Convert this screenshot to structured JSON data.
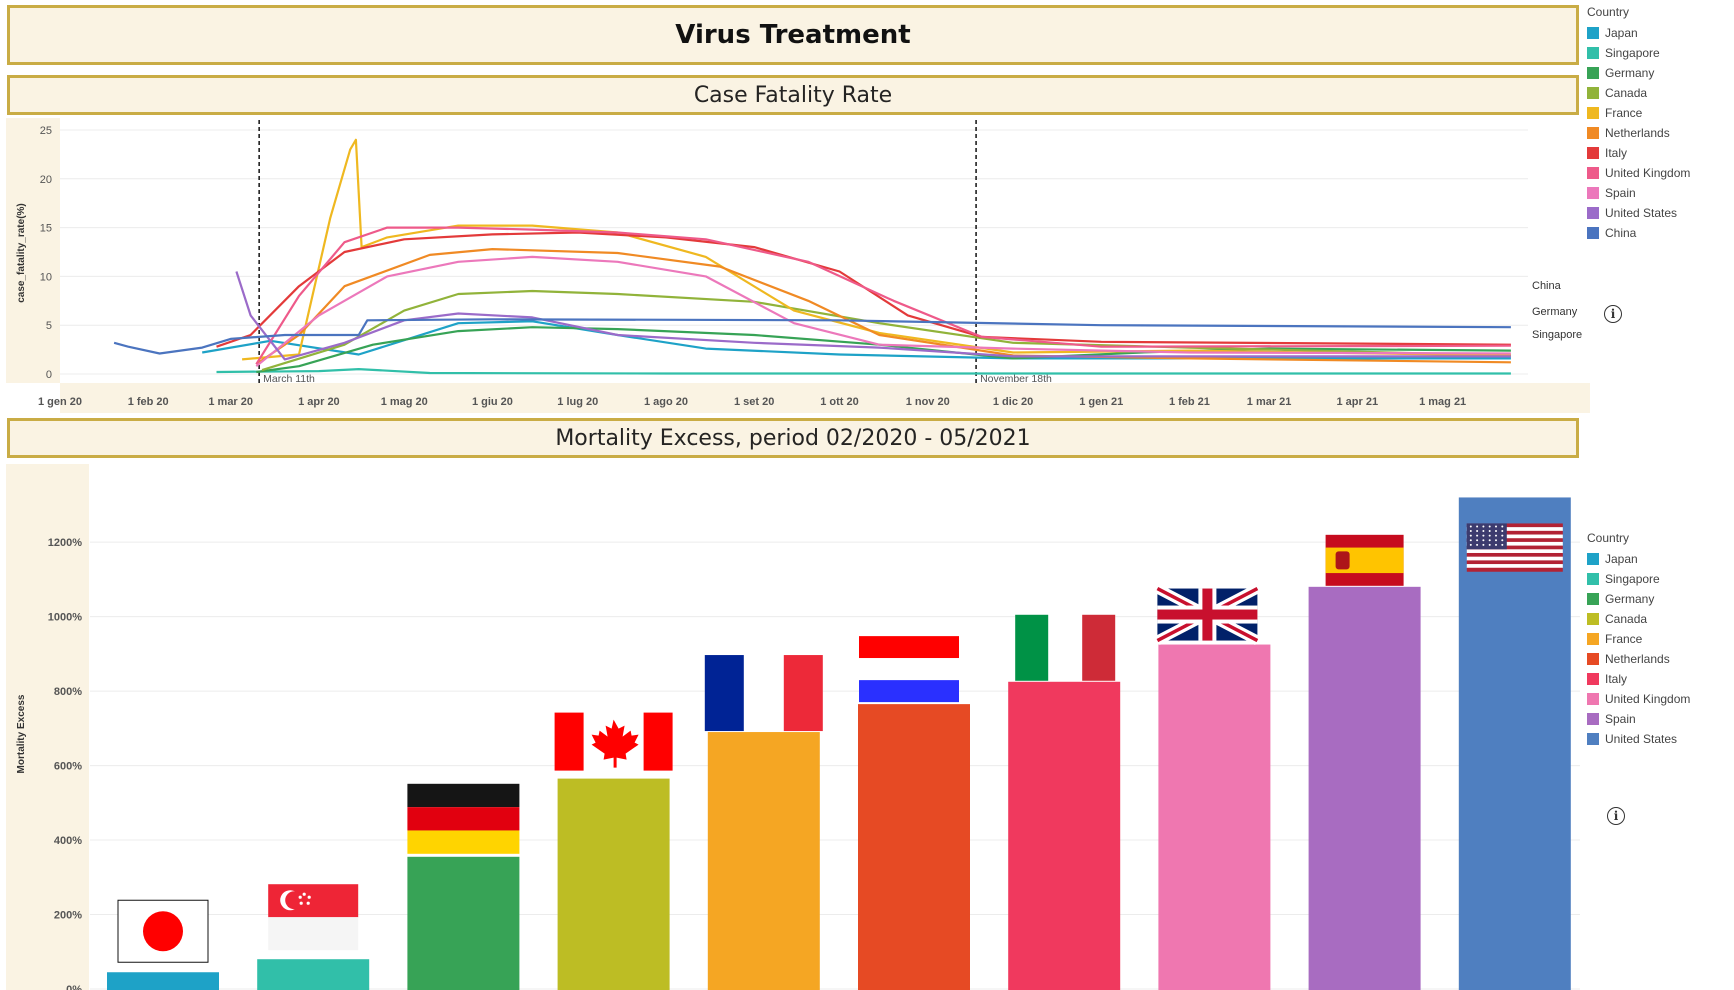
{
  "title": "Virus Treatment",
  "cfr": {
    "subtitle": "Case Fatality Rate",
    "legend_title": "Country"
  },
  "mortality": {
    "subtitle": "Mortality Excess, period 02/2020 - 05/2021",
    "legend_title": "Country"
  },
  "colors": {
    "Japan": "#1ea2c7",
    "Singapore": "#31bfa9",
    "Germany": "#37a356",
    "Canada": "#91b33a",
    "CanadaBar": "#bdbd24",
    "France": "#efb820",
    "FranceBar": "#f5a623",
    "Netherlands": "#f08a24",
    "NetherlandsBar": "#e64a24",
    "Italy": "#e33a3a",
    "ItalyBar": "#f0395e",
    "United Kingdom": "#ee5a8a",
    "United KingdomBar": "#ef77b0",
    "Spain": "#ec78bb",
    "SpainBar": "#a86cc1",
    "United States": "#9b6bc9",
    "United StatesBar": "#4f7fc0",
    "China": "#4b74bf"
  },
  "chart_data": [
    {
      "type": "line",
      "xlabel": "",
      "ylabel": "case_fatality_rate(%)",
      "ylim": [
        0,
        25
      ],
      "yticks": [
        "0",
        "5",
        "10",
        "15",
        "20",
        "25"
      ],
      "xticks": [
        "1 gen 20",
        "1 feb 20",
        "1 mar 20",
        "1 apr 20",
        "1 mag 20",
        "1 giu 20",
        "1 lug 20",
        "1 ago 20",
        "1 set 20",
        "1 ott 20",
        "1 nov 20",
        "1 dic 20",
        "1 gen 21",
        "1 feb 21",
        "1 mar 21",
        "1 apr 21",
        "1 mag 21"
      ],
      "xlim": [
        "2020-01-01",
        "2021-05-31"
      ],
      "grid": true,
      "legend": "right",
      "annotations": [
        {
          "x": "2020-03-11",
          "label": "March 11th"
        },
        {
          "x": "2020-11-18",
          "label": "November 18th"
        }
      ],
      "end_labels": [
        "China",
        "Germany",
        "Singapore"
      ],
      "series": [
        {
          "name": "Japan",
          "points": [
            [
              "2020-02-20",
              2.2
            ],
            [
              "2020-03-15",
              3.4
            ],
            [
              "2020-04-15",
              2.0
            ],
            [
              "2020-05-20",
              5.2
            ],
            [
              "2020-06-15",
              5.4
            ],
            [
              "2020-07-15",
              4.0
            ],
            [
              "2020-08-15",
              2.6
            ],
            [
              "2020-10-01",
              2.0
            ],
            [
              "2020-12-01",
              1.6
            ],
            [
              "2021-02-01",
              1.6
            ],
            [
              "2021-05-25",
              1.6
            ]
          ]
        },
        {
          "name": "Singapore",
          "points": [
            [
              "2020-02-25",
              0.2
            ],
            [
              "2020-04-01",
              0.3
            ],
            [
              "2020-04-15",
              0.5
            ],
            [
              "2020-05-10",
              0.1
            ],
            [
              "2020-08-01",
              0.05
            ],
            [
              "2021-05-25",
              0.05
            ]
          ]
        },
        {
          "name": "Germany",
          "points": [
            [
              "2020-03-10",
              0.2
            ],
            [
              "2020-03-25",
              0.8
            ],
            [
              "2020-04-20",
              3.0
            ],
            [
              "2020-05-20",
              4.4
            ],
            [
              "2020-06-15",
              4.8
            ],
            [
              "2020-07-15",
              4.6
            ],
            [
              "2020-09-01",
              4.0
            ],
            [
              "2020-10-15",
              3.0
            ],
            [
              "2020-12-01",
              1.6
            ],
            [
              "2021-01-15",
              2.2
            ],
            [
              "2021-03-01",
              2.6
            ],
            [
              "2021-05-25",
              2.4
            ]
          ]
        },
        {
          "name": "Canada",
          "points": [
            [
              "2020-03-12",
              0.4
            ],
            [
              "2020-04-10",
              3.0
            ],
            [
              "2020-05-01",
              6.5
            ],
            [
              "2020-05-20",
              8.2
            ],
            [
              "2020-06-15",
              8.5
            ],
            [
              "2020-07-15",
              8.2
            ],
            [
              "2020-09-01",
              7.4
            ],
            [
              "2020-10-15",
              5.2
            ],
            [
              "2020-12-01",
              3.2
            ],
            [
              "2021-02-01",
              2.7
            ],
            [
              "2021-05-25",
              1.9
            ]
          ]
        },
        {
          "name": "France",
          "points": [
            [
              "2020-03-05",
              1.5
            ],
            [
              "2020-03-25",
              2.0
            ],
            [
              "2020-04-05",
              16.0
            ],
            [
              "2020-04-12",
              23.0
            ],
            [
              "2020-04-14",
              24.0
            ],
            [
              "2020-04-16",
              13.0
            ],
            [
              "2020-04-25",
              14.0
            ],
            [
              "2020-05-20",
              15.2
            ],
            [
              "2020-06-15",
              15.2
            ],
            [
              "2020-07-15",
              14.5
            ],
            [
              "2020-08-15",
              12.0
            ],
            [
              "2020-09-15",
              6.5
            ],
            [
              "2020-10-15",
              4.2
            ],
            [
              "2020-12-01",
              2.2
            ],
            [
              "2021-02-01",
              2.4
            ],
            [
              "2021-05-25",
              1.9
            ]
          ]
        },
        {
          "name": "Netherlands",
          "points": [
            [
              "2020-03-10",
              1.0
            ],
            [
              "2020-03-25",
              4.0
            ],
            [
              "2020-04-10",
              9.0
            ],
            [
              "2020-05-10",
              12.2
            ],
            [
              "2020-06-01",
              12.8
            ],
            [
              "2020-07-15",
              12.4
            ],
            [
              "2020-08-20",
              11.0
            ],
            [
              "2020-09-20",
              7.5
            ],
            [
              "2020-10-15",
              4.0
            ],
            [
              "2020-12-01",
              1.9
            ],
            [
              "2021-02-01",
              1.6
            ],
            [
              "2021-05-25",
              1.2
            ]
          ]
        },
        {
          "name": "Italy",
          "points": [
            [
              "2020-02-25",
              2.8
            ],
            [
              "2020-03-08",
              4.0
            ],
            [
              "2020-03-25",
              9.0
            ],
            [
              "2020-04-10",
              12.5
            ],
            [
              "2020-05-01",
              13.8
            ],
            [
              "2020-06-01",
              14.3
            ],
            [
              "2020-07-01",
              14.5
            ],
            [
              "2020-08-01",
              14.0
            ],
            [
              "2020-09-01",
              13.0
            ],
            [
              "2020-10-01",
              10.5
            ],
            [
              "2020-10-25",
              6.0
            ],
            [
              "2020-11-20",
              3.8
            ],
            [
              "2021-01-01",
              3.3
            ],
            [
              "2021-05-25",
              3.0
            ]
          ]
        },
        {
          "name": "United Kingdom",
          "points": [
            [
              "2020-03-10",
              1.0
            ],
            [
              "2020-03-25",
              8.0
            ],
            [
              "2020-04-10",
              13.5
            ],
            [
              "2020-04-25",
              15.0
            ],
            [
              "2020-05-20",
              15.0
            ],
            [
              "2020-06-15",
              14.8
            ],
            [
              "2020-07-15",
              14.5
            ],
            [
              "2020-08-15",
              13.8
            ],
            [
              "2020-09-20",
              11.5
            ],
            [
              "2020-10-20",
              7.5
            ],
            [
              "2020-11-20",
              3.8
            ],
            [
              "2021-01-01",
              2.8
            ],
            [
              "2021-05-25",
              2.9
            ]
          ]
        },
        {
          "name": "Spain",
          "points": [
            [
              "2020-03-10",
              0.8
            ],
            [
              "2020-04-01",
              6.0
            ],
            [
              "2020-04-25",
              10.0
            ],
            [
              "2020-05-20",
              11.5
            ],
            [
              "2020-06-15",
              12.0
            ],
            [
              "2020-07-15",
              11.5
            ],
            [
              "2020-08-15",
              10.0
            ],
            [
              "2020-09-15",
              5.2
            ],
            [
              "2020-10-15",
              3.0
            ],
            [
              "2020-12-01",
              2.6
            ],
            [
              "2021-02-01",
              2.2
            ],
            [
              "2021-05-25",
              2.1
            ]
          ]
        },
        {
          "name": "United States",
          "points": [
            [
              "2020-03-03",
              10.5
            ],
            [
              "2020-03-08",
              6.0
            ],
            [
              "2020-03-20",
              1.5
            ],
            [
              "2020-04-10",
              3.2
            ],
            [
              "2020-05-01",
              5.5
            ],
            [
              "2020-05-20",
              6.2
            ],
            [
              "2020-06-15",
              5.8
            ],
            [
              "2020-07-15",
              4.0
            ],
            [
              "2020-09-01",
              3.2
            ],
            [
              "2020-10-15",
              2.7
            ],
            [
              "2020-12-01",
              1.8
            ],
            [
              "2021-02-01",
              1.8
            ],
            [
              "2021-05-25",
              1.8
            ]
          ]
        },
        {
          "name": "China",
          "points": [
            [
              "2020-01-20",
              3.2
            ],
            [
              "2020-01-25",
              2.8
            ],
            [
              "2020-02-05",
              2.1
            ],
            [
              "2020-02-20",
              2.7
            ],
            [
              "2020-03-01",
              3.6
            ],
            [
              "2020-03-20",
              4.0
            ],
            [
              "2020-04-15",
              4.0
            ],
            [
              "2020-04-18",
              5.5
            ],
            [
              "2020-06-01",
              5.6
            ],
            [
              "2020-10-01",
              5.5
            ],
            [
              "2021-01-01",
              5.0
            ],
            [
              "2021-05-25",
              4.8
            ]
          ]
        }
      ]
    },
    {
      "type": "bar",
      "categories": [
        "Japan",
        "Singapore",
        "Germany",
        "Canada",
        "France",
        "Netherlands",
        "Italy",
        "United Kingdom",
        "Spain",
        "United States"
      ],
      "values": [
        45,
        80,
        355,
        565,
        690,
        765,
        825,
        925,
        1080,
        1320
      ],
      "ylabel": "Mortality Excess",
      "yticks": [
        "0%",
        "200%",
        "400%",
        "600%",
        "800%",
        "1000%",
        "1200%"
      ],
      "ylim": [
        0,
        1340
      ],
      "legend": "right"
    }
  ],
  "legend_items": [
    "Japan",
    "Singapore",
    "Germany",
    "Canada",
    "France",
    "Netherlands",
    "Italy",
    "United Kingdom",
    "Spain",
    "United States",
    "China"
  ],
  "legend_items_bottom": [
    "Japan",
    "Singapore",
    "Germany",
    "Canada",
    "France",
    "Netherlands",
    "Italy",
    "United Kingdom",
    "Spain",
    "United States"
  ],
  "info_glyph": "i"
}
